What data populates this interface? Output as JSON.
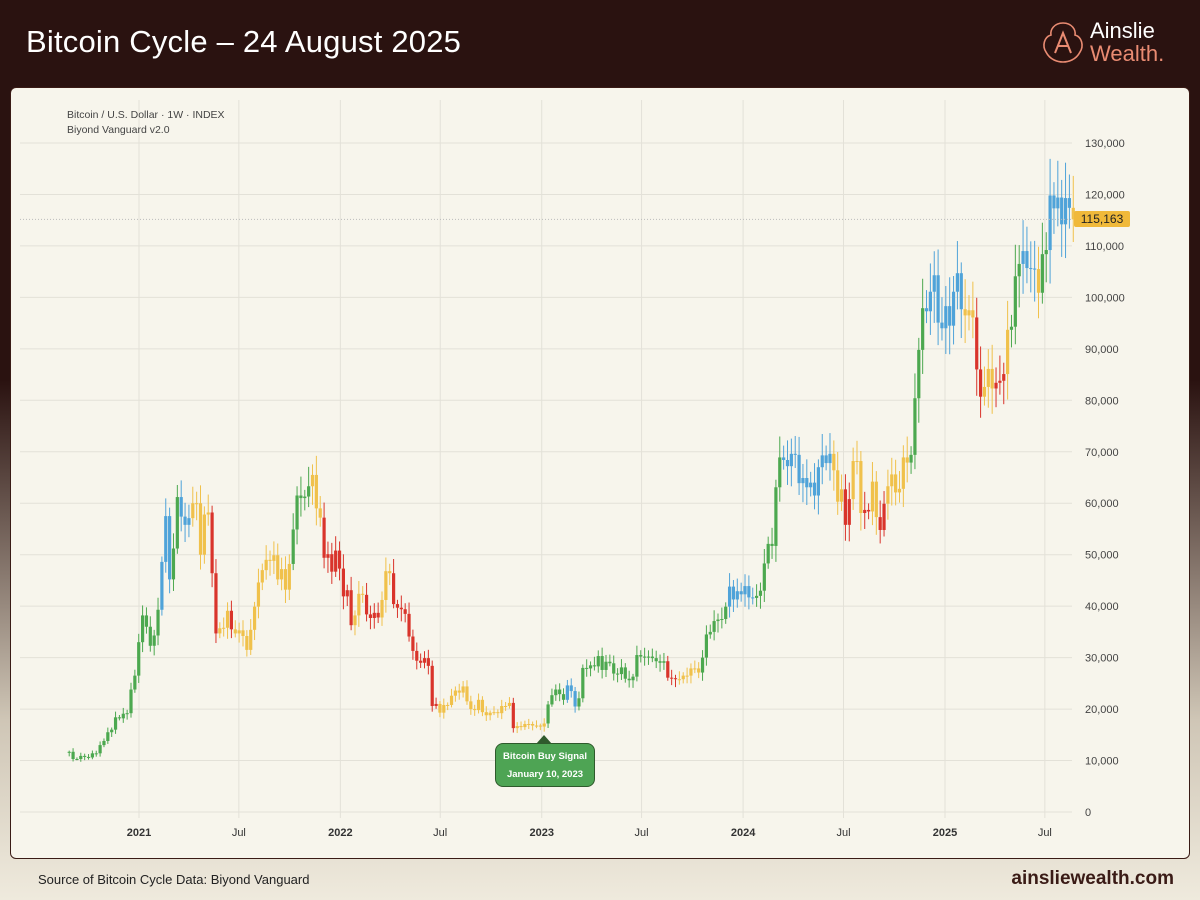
{
  "header": {
    "title": "Bitcoin Cycle – 24 August 2025",
    "logo_line1": "Ainslie",
    "logo_line2": "Wealth."
  },
  "chart_meta": {
    "symbol": "Bitcoin / U.S. Dollar · 1W · INDEX",
    "indicator": "Biyond Vanguard v2.0"
  },
  "footer": {
    "source": "Source of Bitcoin Cycle Data: Biyond Vanguard",
    "site": "ainsliewealth.com"
  },
  "colors": {
    "green": "#4ca84f",
    "blue": "#4fa3d9",
    "yellow": "#f0c14b",
    "red": "#d9342b",
    "header": "#2a1210",
    "accent": "#e98b72"
  },
  "chart_data": {
    "type": "candlestick",
    "interval": "1W",
    "start_week": "2020-08-24",
    "ylim": [
      0,
      130000
    ],
    "y_ticks": [
      "0",
      "10,000",
      "20,000",
      "30,000",
      "40,000",
      "50,000",
      "60,000",
      "70,000",
      "80,000",
      "90,000",
      "100,000",
      "110,000",
      "120,000",
      "130,000"
    ],
    "x_ticks": [
      {
        "label": "2021",
        "date": "2021-01-01",
        "bold": true
      },
      {
        "label": "Jul",
        "date": "2021-07-01"
      },
      {
        "label": "2022",
        "date": "2022-01-01",
        "bold": true
      },
      {
        "label": "Jul",
        "date": "2022-07-01"
      },
      {
        "label": "2023",
        "date": "2023-01-01",
        "bold": true
      },
      {
        "label": "Jul",
        "date": "2023-07-01"
      },
      {
        "label": "2024",
        "date": "2024-01-01",
        "bold": true
      },
      {
        "label": "Jul",
        "date": "2024-07-01"
      },
      {
        "label": "2025",
        "date": "2025-01-01",
        "bold": true
      },
      {
        "label": "Jul",
        "date": "2025-07-01"
      }
    ],
    "grid": true,
    "last_price": "115,163",
    "weekly_close_k": [
      11.7,
      10.3,
      10.3,
      10.9,
      10.7,
      10.6,
      11.4,
      11.4,
      13.0,
      13.8,
      15.5,
      16.0,
      18.4,
      18.2,
      19.1,
      19.2,
      23.8,
      26.5,
      33.0,
      38.2,
      36.0,
      32.3,
      34.3,
      39.3,
      48.6,
      57.5,
      45.2,
      51.2,
      61.2,
      57.4,
      55.8,
      57.1,
      60.0,
      60.0,
      50.0,
      57.8,
      58.2,
      46.4,
      34.7,
      35.7,
      35.8,
      39.1,
      35.5,
      34.7,
      35.3,
      34.2,
      31.5,
      35.4,
      39.9,
      44.6,
      47.0,
      49.0,
      48.8,
      49.9,
      45.2,
      47.2,
      43.2,
      48.2,
      54.9,
      61.5,
      61.0,
      61.3,
      63.3,
      65.5,
      59.0,
      57.2,
      49.4,
      50.1,
      46.7,
      50.8,
      47.3,
      41.9,
      43.1,
      36.3,
      38.2,
      42.4,
      42.2,
      38.4,
      37.7,
      38.7,
      37.8,
      41.2,
      46.8,
      46.4,
      40.4,
      39.7,
      39.4,
      38.5,
      34.1,
      31.3,
      29.4,
      29.0,
      29.9,
      28.4,
      20.6,
      21.0,
      19.3,
      20.8,
      20.8,
      22.6,
      23.6,
      23.2,
      24.4,
      21.5,
      20.0,
      19.8,
      21.8,
      19.4,
      18.8,
      19.3,
      19.4,
      19.2,
      20.6,
      20.6,
      21.2,
      16.3,
      16.7,
      16.5,
      17.1,
      17.1,
      16.8,
      16.8,
      16.6,
      17.2,
      20.9,
      22.7,
      23.8,
      22.9,
      21.8,
      24.6,
      23.5,
      20.5,
      22.1,
      28.0,
      27.9,
      28.5,
      28.3,
      30.3,
      27.6,
      29.2,
      28.9,
      26.9,
      26.8,
      28.1,
      25.9,
      25.6,
      26.3,
      30.5,
      30.2,
      30.2,
      30.2,
      29.9,
      29.3,
      29.0,
      29.3,
      26.1,
      26.0,
      25.8,
      25.8,
      26.5,
      26.5,
      27.9,
      27.9,
      27.1,
      30.0,
      34.5,
      35.0,
      37.1,
      37.4,
      37.5,
      39.9,
      43.8,
      41.3,
      42.9,
      42.3,
      43.9,
      41.7,
      41.6,
      42.0,
      43.0,
      48.3,
      52.1,
      51.7,
      63.1,
      68.9,
      68.4,
      67.2,
      69.6,
      69.4,
      63.9,
      64.9,
      63.1,
      64.0,
      61.5,
      67.0,
      69.3,
      67.8,
      69.6,
      66.4,
      60.3,
      62.7,
      55.8,
      60.8,
      68.2,
      68.2,
      58.1,
      58.7,
      58.4,
      64.2,
      57.3,
      54.8,
      59.9,
      63.3,
      65.6,
      62.1,
      62.8,
      68.9,
      67.9,
      69.4,
      80.4,
      89.8,
      97.9,
      97.3,
      101.1,
      104.3,
      95.1,
      94.0,
      98.3,
      94.5,
      101.1,
      104.7,
      97.7,
      96.5,
      97.5,
      96.1,
      86.0,
      80.7,
      82.6,
      86.1,
      82.3,
      83.4,
      83.8,
      85.1,
      93.7,
      94.3,
      104.1,
      106.5,
      109.0,
      105.7,
      105.6,
      105.5,
      100.9,
      108.4,
      109.2,
      119.8,
      117.3,
      119.4,
      114.2,
      119.3,
      117.4,
      115.163
    ],
    "signal_segments": [
      [
        "2020-08-24",
        "green"
      ],
      [
        "2021-02-08",
        "blue"
      ],
      [
        "2021-03-01",
        "green"
      ],
      [
        "2021-03-15",
        "blue"
      ],
      [
        "2021-04-05",
        "yellow"
      ],
      [
        "2021-05-10",
        "red"
      ],
      [
        "2021-05-24",
        "yellow"
      ],
      [
        "2021-06-14",
        "red"
      ],
      [
        "2021-06-21",
        "yellow"
      ],
      [
        "2021-10-04",
        "green"
      ],
      [
        "2021-11-08",
        "yellow"
      ],
      [
        "2021-11-29",
        "red"
      ],
      [
        "2022-01-24",
        "yellow"
      ],
      [
        "2022-02-14",
        "red"
      ],
      [
        "2022-03-14",
        "yellow"
      ],
      [
        "2022-04-04",
        "red"
      ],
      [
        "2022-06-27",
        "yellow"
      ],
      [
        "2022-11-07",
        "red"
      ],
      [
        "2022-11-14",
        "yellow"
      ],
      [
        "2023-01-09",
        "green"
      ],
      [
        "2023-02-13",
        "blue"
      ],
      [
        "2023-03-06",
        "green"
      ],
      [
        "2023-08-14",
        "red"
      ],
      [
        "2023-09-04",
        "yellow"
      ],
      [
        "2023-10-16",
        "green"
      ],
      [
        "2023-12-04",
        "blue"
      ],
      [
        "2024-01-22",
        "green"
      ],
      [
        "2024-03-11",
        "blue"
      ],
      [
        "2024-06-10",
        "yellow"
      ],
      [
        "2024-07-01",
        "red"
      ],
      [
        "2024-07-15",
        "yellow"
      ],
      [
        "2024-08-05",
        "red"
      ],
      [
        "2024-08-19",
        "yellow"
      ],
      [
        "2024-09-02",
        "red"
      ],
      [
        "2024-09-16",
        "yellow"
      ],
      [
        "2024-10-28",
        "green"
      ],
      [
        "2024-11-25",
        "blue"
      ],
      [
        "2025-02-03",
        "yellow"
      ],
      [
        "2025-02-24",
        "red"
      ],
      [
        "2025-03-10",
        "yellow"
      ],
      [
        "2025-03-31",
        "red"
      ],
      [
        "2025-04-21",
        "yellow"
      ],
      [
        "2025-04-28",
        "green"
      ],
      [
        "2025-05-19",
        "blue"
      ],
      [
        "2025-06-16",
        "yellow"
      ],
      [
        "2025-06-23",
        "green"
      ],
      [
        "2025-07-07",
        "blue"
      ],
      [
        "2025-08-18",
        "yellow"
      ]
    ],
    "annotation": {
      "line1": "Bitcoin Buy Signal",
      "line2": "January 10, 2023",
      "date": "2023-01-10"
    }
  }
}
